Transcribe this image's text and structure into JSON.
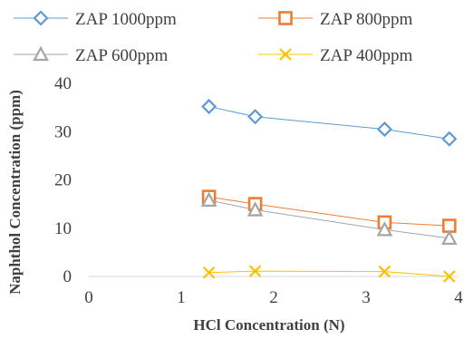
{
  "chart_data": {
    "type": "line",
    "title": "",
    "xlabel": "HCl Concentration (N)",
    "ylabel": "Naphthol Concentration (ppm)",
    "xlim": [
      0,
      4
    ],
    "ylim": [
      0,
      40
    ],
    "xticks": [
      "0",
      "1",
      "2",
      "3",
      "4"
    ],
    "yticks": [
      "0",
      "10",
      "20",
      "30",
      "40"
    ],
    "grid": false,
    "legend": "top",
    "series": [
      {
        "name": "ZAP 1000ppm",
        "color": "#5B9BD5",
        "marker": "diamond",
        "x": [
          1.3,
          1.8,
          3.2,
          3.9
        ],
        "y": [
          35.2,
          33.1,
          30.5,
          28.5
        ]
      },
      {
        "name": "ZAP 800ppm",
        "color": "#ED7D31",
        "marker": "square",
        "x": [
          1.3,
          1.8,
          3.2,
          3.9
        ],
        "y": [
          16.5,
          15.0,
          11.2,
          10.5
        ]
      },
      {
        "name": "ZAP 600ppm",
        "color": "#A5A5A5",
        "marker": "triangle",
        "x": [
          1.3,
          1.8,
          3.2,
          3.9
        ],
        "y": [
          15.8,
          13.8,
          9.7,
          7.9
        ]
      },
      {
        "name": "ZAP 400ppm",
        "color": "#FFC000",
        "marker": "x",
        "x": [
          1.3,
          1.8,
          3.2,
          3.9
        ],
        "y": [
          0.8,
          1.1,
          1.0,
          0.0
        ]
      }
    ]
  }
}
